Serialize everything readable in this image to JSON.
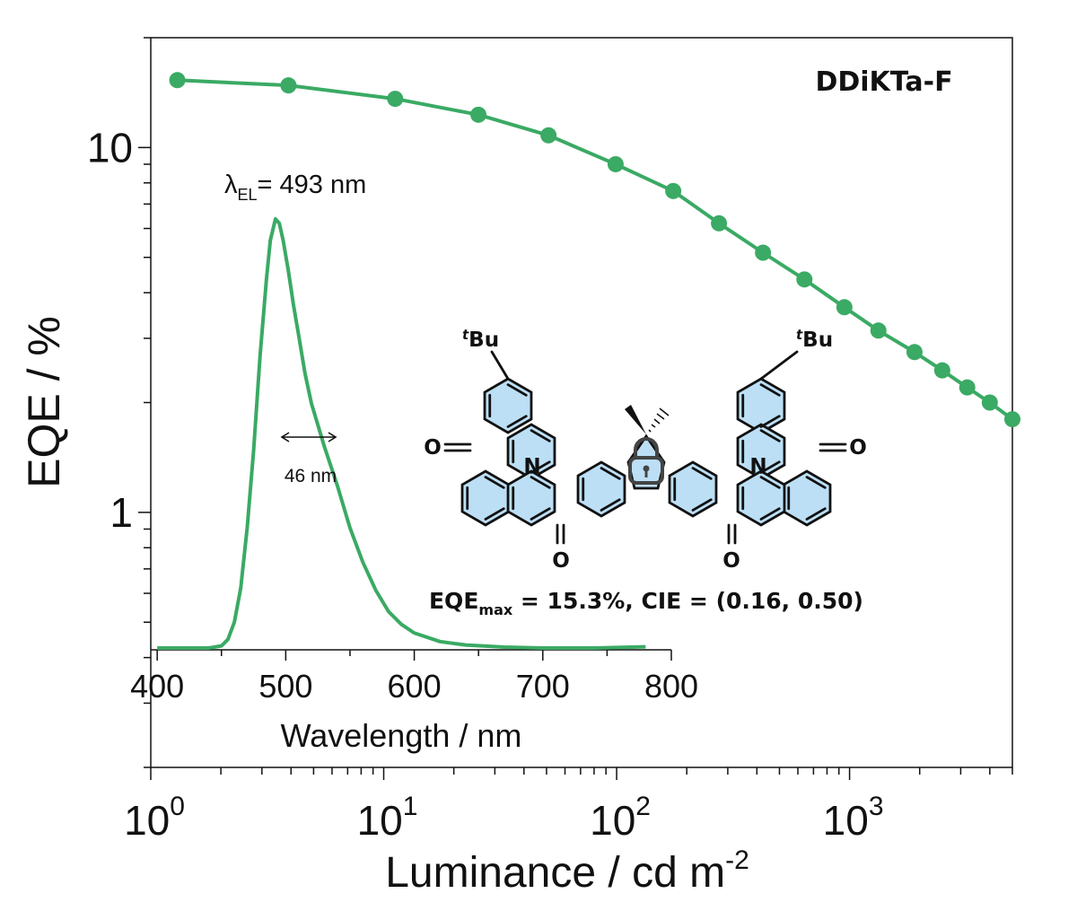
{
  "chart_data": [
    {
      "type": "scatter",
      "title": "DDiKTa-F",
      "xlabel": "Luminance / cd m",
      "xlabel_exponent": "-2",
      "ylabel": "EQE / %",
      "x_scale": "log",
      "y_scale": "log",
      "xlim": [
        1,
        5000
      ],
      "ylim": [
        0.2,
        20
      ],
      "x_ticks": [
        1,
        10,
        100,
        1000
      ],
      "x_tick_labels": [
        {
          "base": "10",
          "exp": "0"
        },
        {
          "base": "10",
          "exp": "1"
        },
        {
          "base": "10",
          "exp": "2"
        },
        {
          "base": "10",
          "exp": "3"
        }
      ],
      "y_ticks": [
        1,
        10
      ],
      "y_tick_labels": [
        "1",
        "10"
      ],
      "grid": false,
      "color": "#3aaa64",
      "series": [
        {
          "x": [
            1.3,
            3.9,
            11.2,
            25.5,
            51,
            99,
            175,
            275,
            425,
            640,
            950,
            1330,
            1900,
            2500,
            3200,
            4000,
            5000
          ],
          "y": [
            15.3,
            14.8,
            13.6,
            12.3,
            10.8,
            9.0,
            7.6,
            6.2,
            5.15,
            4.35,
            3.65,
            3.15,
            2.75,
            2.45,
            2.2,
            2.0,
            1.8
          ]
        }
      ]
    },
    {
      "type": "line",
      "xlabel": "Wavelength / nm",
      "xlim": [
        395,
        800
      ],
      "x_ticks": [
        400,
        500,
        600,
        700,
        800
      ],
      "x_tick_labels": [
        "400",
        "500",
        "600",
        "700",
        "800"
      ],
      "color": "#3aaa64",
      "series": [
        {
          "x": [
            400,
            440,
            450,
            455,
            460,
            465,
            470,
            475,
            480,
            485,
            488,
            492,
            495,
            498,
            502,
            506,
            510,
            515,
            520,
            525,
            530,
            540,
            550,
            560,
            570,
            580,
            590,
            600,
            620,
            640,
            670,
            700,
            740,
            780
          ],
          "y": [
            0,
            0,
            0.005,
            0.02,
            0.06,
            0.14,
            0.28,
            0.46,
            0.68,
            0.86,
            0.95,
            1.0,
            0.99,
            0.95,
            0.88,
            0.8,
            0.73,
            0.64,
            0.57,
            0.52,
            0.47,
            0.38,
            0.28,
            0.2,
            0.135,
            0.085,
            0.055,
            0.035,
            0.015,
            0.007,
            0.002,
            0,
            0,
            0.003
          ]
        }
      ],
      "annotations": {
        "peak_label": {
          "symbol": "λ",
          "sub": "EL",
          "value": "= 493 nm"
        },
        "fwhm_label": "46 nm"
      }
    }
  ],
  "molecule": {
    "tbu_left": {
      "sup": "t",
      "text": "Bu"
    },
    "tbu_right": {
      "sup": "t",
      "text": "Bu"
    },
    "n_label": "N",
    "o_label": "O",
    "lock_icon": "lock-icon",
    "ring_fill": "#bcdff5",
    "caption": {
      "prefix": "EQE",
      "sub": "max",
      "text": " = 15.3%, CIE = (0.16, 0.50)"
    }
  }
}
